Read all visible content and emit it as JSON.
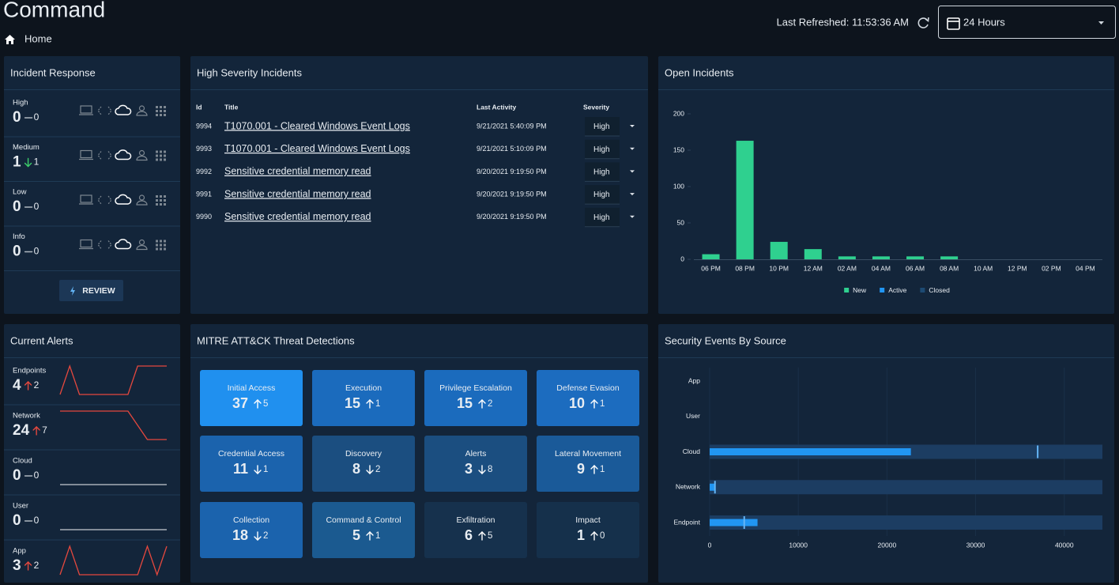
{
  "header": {
    "title": "Command",
    "breadcrumb": "Home",
    "last_refreshed": "Last Refreshed: 11:53:36 AM",
    "time_range": "24 Hours"
  },
  "incident_response": {
    "title": "Incident Response",
    "button": "REVIEW",
    "rows": [
      {
        "label": "High",
        "count": 0,
        "change": 0,
        "trend": "flat"
      },
      {
        "label": "Medium",
        "count": 1,
        "change": 1,
        "trend": "down"
      },
      {
        "label": "Low",
        "count": 0,
        "change": 0,
        "trend": "flat"
      },
      {
        "label": "Info",
        "count": 0,
        "change": 0,
        "trend": "flat"
      }
    ]
  },
  "high_severity": {
    "title": "High Severity Incidents",
    "columns": [
      "Id",
      "Title",
      "Last Activity",
      "Severity"
    ],
    "rows": [
      [
        "9994",
        "T1070.001 - Cleared Windows Event Logs",
        "9/21/2021 5:40:09 PM",
        "High"
      ],
      [
        "9993",
        "T1070.001 - Cleared Windows Event Logs",
        "9/21/2021 5:10:09 PM",
        "High"
      ],
      [
        "9992",
        "Sensitive credential memory read",
        "9/20/2021 9:19:50 PM",
        "High"
      ],
      [
        "9991",
        "Sensitive credential memory read",
        "9/20/2021 9:19:50 PM",
        "High"
      ],
      [
        "9990",
        "Sensitive credential memory read",
        "9/20/2021 9:19:50 PM",
        "High"
      ]
    ]
  },
  "current_alerts": {
    "title": "Current Alerts",
    "rows": [
      {
        "label": "Endpoints",
        "count": 4,
        "change": 2,
        "trend": "up",
        "sparkline": [
          0,
          1,
          0,
          0,
          0,
          0,
          0,
          0,
          1,
          1,
          1,
          1
        ]
      },
      {
        "label": "Network",
        "count": 24,
        "change": 7,
        "trend": "up",
        "sparkline": [
          1,
          1,
          1,
          1,
          1,
          1,
          1,
          1,
          0.5,
          0,
          0,
          0
        ]
      },
      {
        "label": "Cloud",
        "count": 0,
        "change": 0,
        "trend": "flat",
        "sparkline": [
          0,
          0,
          0,
          0,
          0,
          0,
          0,
          0,
          0,
          0,
          0,
          0
        ]
      },
      {
        "label": "User",
        "count": 0,
        "change": 0,
        "trend": "flat",
        "sparkline": [
          0,
          0,
          0,
          0,
          0,
          0,
          0,
          0,
          0,
          0,
          0,
          0
        ]
      },
      {
        "label": "App",
        "count": 3,
        "change": 2,
        "trend": "up",
        "sparkline": [
          0,
          1,
          0,
          0,
          0,
          0,
          0,
          0,
          0,
          1,
          0,
          1
        ]
      }
    ]
  },
  "mitre": {
    "title": "MITRE ATT&CK Threat Detections",
    "tiles": [
      {
        "name": "Initial Access",
        "count": 37,
        "change": 5,
        "trend": "up",
        "color": "#2090ef"
      },
      {
        "name": "Execution",
        "count": 15,
        "change": 1,
        "trend": "up",
        "color": "#1b6bbd"
      },
      {
        "name": "Privilege Escalation",
        "count": 15,
        "change": 2,
        "trend": "up",
        "color": "#1b6bbd"
      },
      {
        "name": "Defense Evasion",
        "count": 10,
        "change": 1,
        "trend": "up",
        "color": "#1c6cbf"
      },
      {
        "name": "Credential Access",
        "count": 11,
        "change": 1,
        "trend": "down",
        "color": "#1b63ad"
      },
      {
        "name": "Discovery",
        "count": 8,
        "change": 2,
        "trend": "down",
        "color": "#1b4e80"
      },
      {
        "name": "Alerts",
        "count": 3,
        "change": 8,
        "trend": "down",
        "color": "#1b4e80"
      },
      {
        "name": "Lateral Movement",
        "count": 9,
        "change": 1,
        "trend": "up",
        "color": "#1a5a99"
      },
      {
        "name": "Collection",
        "count": 18,
        "change": 2,
        "trend": "down",
        "color": "#1b63ad"
      },
      {
        "name": "Command & Control",
        "count": 5,
        "change": 1,
        "trend": "up",
        "color": "#1b5a90"
      },
      {
        "name": "Exfiltration",
        "count": 6,
        "change": 5,
        "trend": "up",
        "color": "#16314d"
      },
      {
        "name": "Impact",
        "count": 1,
        "change": 0,
        "trend": "up",
        "color": "#15304b"
      }
    ]
  },
  "chart_data": [
    {
      "type": "bar",
      "title": "Open Incidents",
      "categories": [
        "06 PM",
        "08 PM",
        "10 PM",
        "12 AM",
        "02 AM",
        "04 AM",
        "06 AM",
        "08 AM",
        "10 AM",
        "12 PM",
        "02 PM",
        "04 PM"
      ],
      "series": [
        {
          "name": "New",
          "color": "#2fd08f",
          "values": [
            7,
            163,
            24,
            14,
            4,
            4,
            4,
            4,
            0,
            0,
            0,
            0
          ]
        },
        {
          "name": "Active",
          "color": "#2196f3",
          "values": [
            0,
            0,
            0,
            0,
            0,
            0,
            0,
            0,
            0,
            0,
            0,
            0
          ]
        },
        {
          "name": "Closed",
          "color": "#1d4a73",
          "values": [
            0,
            0,
            0,
            0,
            0,
            0,
            0,
            0,
            0,
            0,
            0,
            0
          ]
        }
      ],
      "ylim": [
        0,
        200
      ],
      "yticks": [
        0,
        50,
        100,
        150,
        200
      ],
      "legend": "bottom"
    },
    {
      "type": "bullet",
      "title": "Security Events By Source",
      "categories": [
        "App",
        "User",
        "Cloud",
        "Network",
        "Endpoint"
      ],
      "values": [
        null,
        null,
        22700,
        600,
        5400
      ],
      "targets": [
        null,
        null,
        37000,
        600,
        3900
      ],
      "ranges": [
        null,
        null,
        44300,
        44300,
        44300
      ],
      "color": "#2196f3",
      "range_color": "#1c3d62",
      "target_color": "#64b5f6",
      "xlim": [
        0,
        44300
      ],
      "xticks": [
        0,
        10000,
        20000,
        30000,
        40000
      ],
      "grid": true
    }
  ]
}
